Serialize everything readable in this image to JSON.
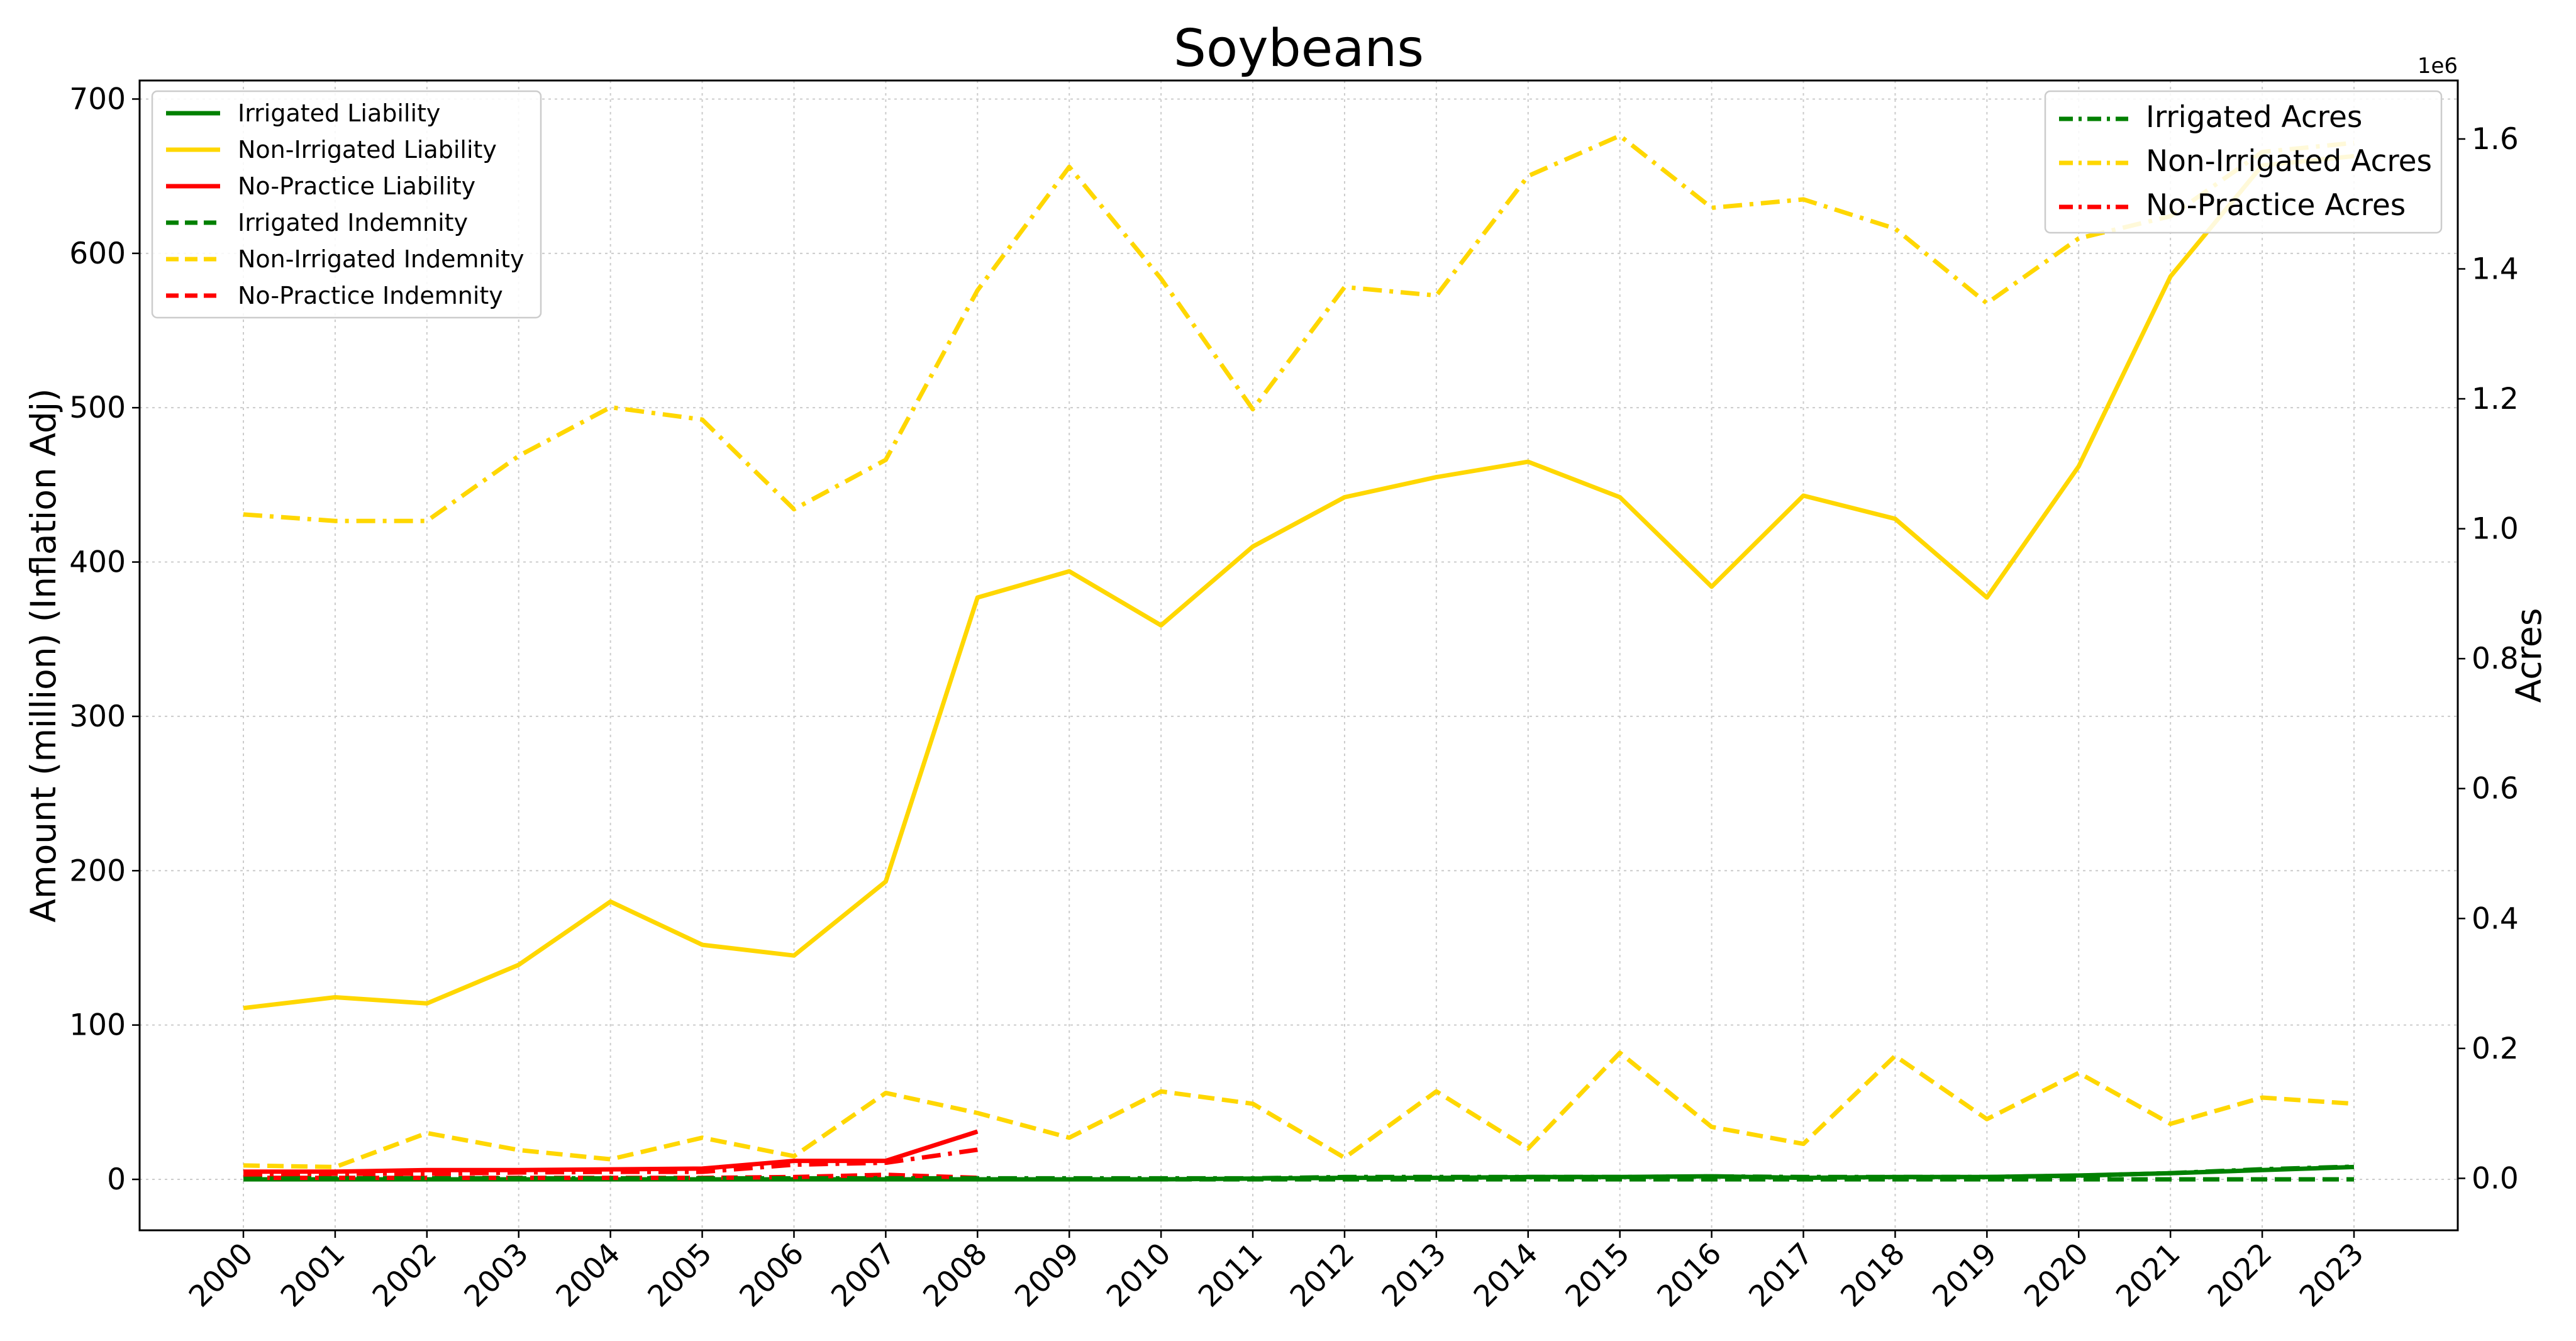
{
  "chart_data": {
    "type": "line",
    "title": "Soybeans",
    "x": [
      "2000",
      "2001",
      "2002",
      "2003",
      "2004",
      "2005",
      "2006",
      "2007",
      "2008",
      "2009",
      "2010",
      "2011",
      "2012",
      "2013",
      "2014",
      "2015",
      "2016",
      "2017",
      "2018",
      "2019",
      "2020",
      "2021",
      "2022",
      "2023"
    ],
    "left_axis": {
      "label": "Amount (million) (Inflation Adj)",
      "ylim": [
        -33,
        712
      ],
      "ticks": [
        0,
        100,
        200,
        300,
        400,
        500,
        600,
        700
      ]
    },
    "right_axis": {
      "label": "Acres",
      "offset_label": "1e6",
      "ylim": [
        -0.08,
        1.69
      ],
      "ticks": [
        0.0,
        0.2,
        0.4,
        0.6,
        0.8,
        1.0,
        1.2,
        1.4,
        1.6
      ]
    },
    "grid": true,
    "legends": [
      {
        "position": "upper-left",
        "entries": [
          "Irrigated Liability",
          "Non-Irrigated Liability",
          "No-Practice Liability",
          "Irrigated Indemnity",
          "Non-Irrigated Indemnity",
          "No-Practice Indemnity"
        ]
      },
      {
        "position": "upper-right",
        "entries": [
          "Irrigated Acres",
          "Non-Irrigated Acres",
          "No-Practice Acres"
        ]
      }
    ],
    "series": [
      {
        "name": "Irrigated Liability",
        "axis": "left",
        "style": "solid",
        "color": "#008000",
        "values": [
          0,
          0,
          0,
          0,
          0,
          0,
          0,
          0,
          0,
          0,
          0,
          0.5,
          1,
          1,
          1.5,
          1.5,
          2,
          1,
          1.5,
          1.5,
          2.5,
          4,
          6,
          8
        ]
      },
      {
        "name": "Non-Irrigated Liability",
        "axis": "left",
        "style": "solid",
        "color": "#FFD700",
        "values": [
          111,
          118,
          114,
          139,
          180,
          152,
          145,
          193,
          377,
          394,
          359,
          410,
          442,
          455,
          465,
          442,
          384,
          443,
          428,
          377,
          462,
          585,
          657,
          663
        ]
      },
      {
        "name": "No-Practice Liability",
        "axis": "left",
        "style": "solid",
        "color": "#FF0000",
        "values": [
          5,
          5,
          6,
          6,
          6.5,
          7,
          12,
          12,
          31,
          null,
          null,
          null,
          null,
          null,
          null,
          null,
          null,
          null,
          null,
          null,
          null,
          null,
          null,
          null
        ]
      },
      {
        "name": "Irrigated Indemnity",
        "axis": "left",
        "style": "dashed",
        "color": "#008000",
        "values": [
          0,
          0,
          0,
          0,
          0,
          0,
          0,
          0,
          0,
          0,
          0,
          0,
          0,
          0,
          0,
          0,
          0,
          0,
          0,
          0,
          0,
          0,
          0,
          0
        ]
      },
      {
        "name": "Non-Irrigated Indemnity",
        "axis": "left",
        "style": "dashed",
        "color": "#FFD700",
        "values": [
          9,
          8,
          30,
          19,
          13,
          27,
          15,
          56,
          43,
          27,
          57,
          49,
          14,
          57,
          20,
          82,
          34,
          23,
          80,
          39,
          69,
          36,
          53,
          49
        ]
      },
      {
        "name": "No-Practice Indemnity",
        "axis": "left",
        "style": "dashed",
        "color": "#FF0000",
        "values": [
          1,
          1,
          1,
          1,
          1,
          1,
          1.5,
          3,
          1,
          null,
          null,
          null,
          null,
          null,
          null,
          null,
          null,
          null,
          null,
          null,
          null,
          null,
          null,
          null
        ]
      },
      {
        "name": "Irrigated Acres",
        "axis": "right",
        "style": "dashdot",
        "color": "#008000",
        "values": [
          0,
          0,
          0,
          0,
          0,
          0,
          0,
          0,
          0,
          0,
          0,
          0,
          0.002,
          0.002,
          0.002,
          0.002,
          0.003,
          0.002,
          0.002,
          0.002,
          0.004,
          0.008,
          0.014,
          0.018
        ]
      },
      {
        "name": "Non-Irrigated Acres",
        "axis": "right",
        "style": "dashdot",
        "color": "#FFD700",
        "values": [
          1.022,
          1.012,
          1.012,
          1.112,
          1.187,
          1.168,
          1.03,
          1.106,
          1.367,
          1.557,
          1.385,
          1.184,
          1.372,
          1.359,
          1.543,
          1.605,
          1.494,
          1.507,
          1.462,
          1.347,
          1.447,
          1.481,
          1.58,
          1.594
        ]
      },
      {
        "name": "No-Practice Acres",
        "axis": "right",
        "style": "dashdot",
        "color": "#FF0000",
        "values": [
          0.006,
          0.007,
          0.007,
          0.009,
          0.01,
          0.01,
          0.021,
          0.024,
          0.044,
          null,
          null,
          null,
          null,
          null,
          null,
          null,
          null,
          null,
          null,
          null,
          null,
          null,
          null,
          null
        ]
      }
    ]
  }
}
